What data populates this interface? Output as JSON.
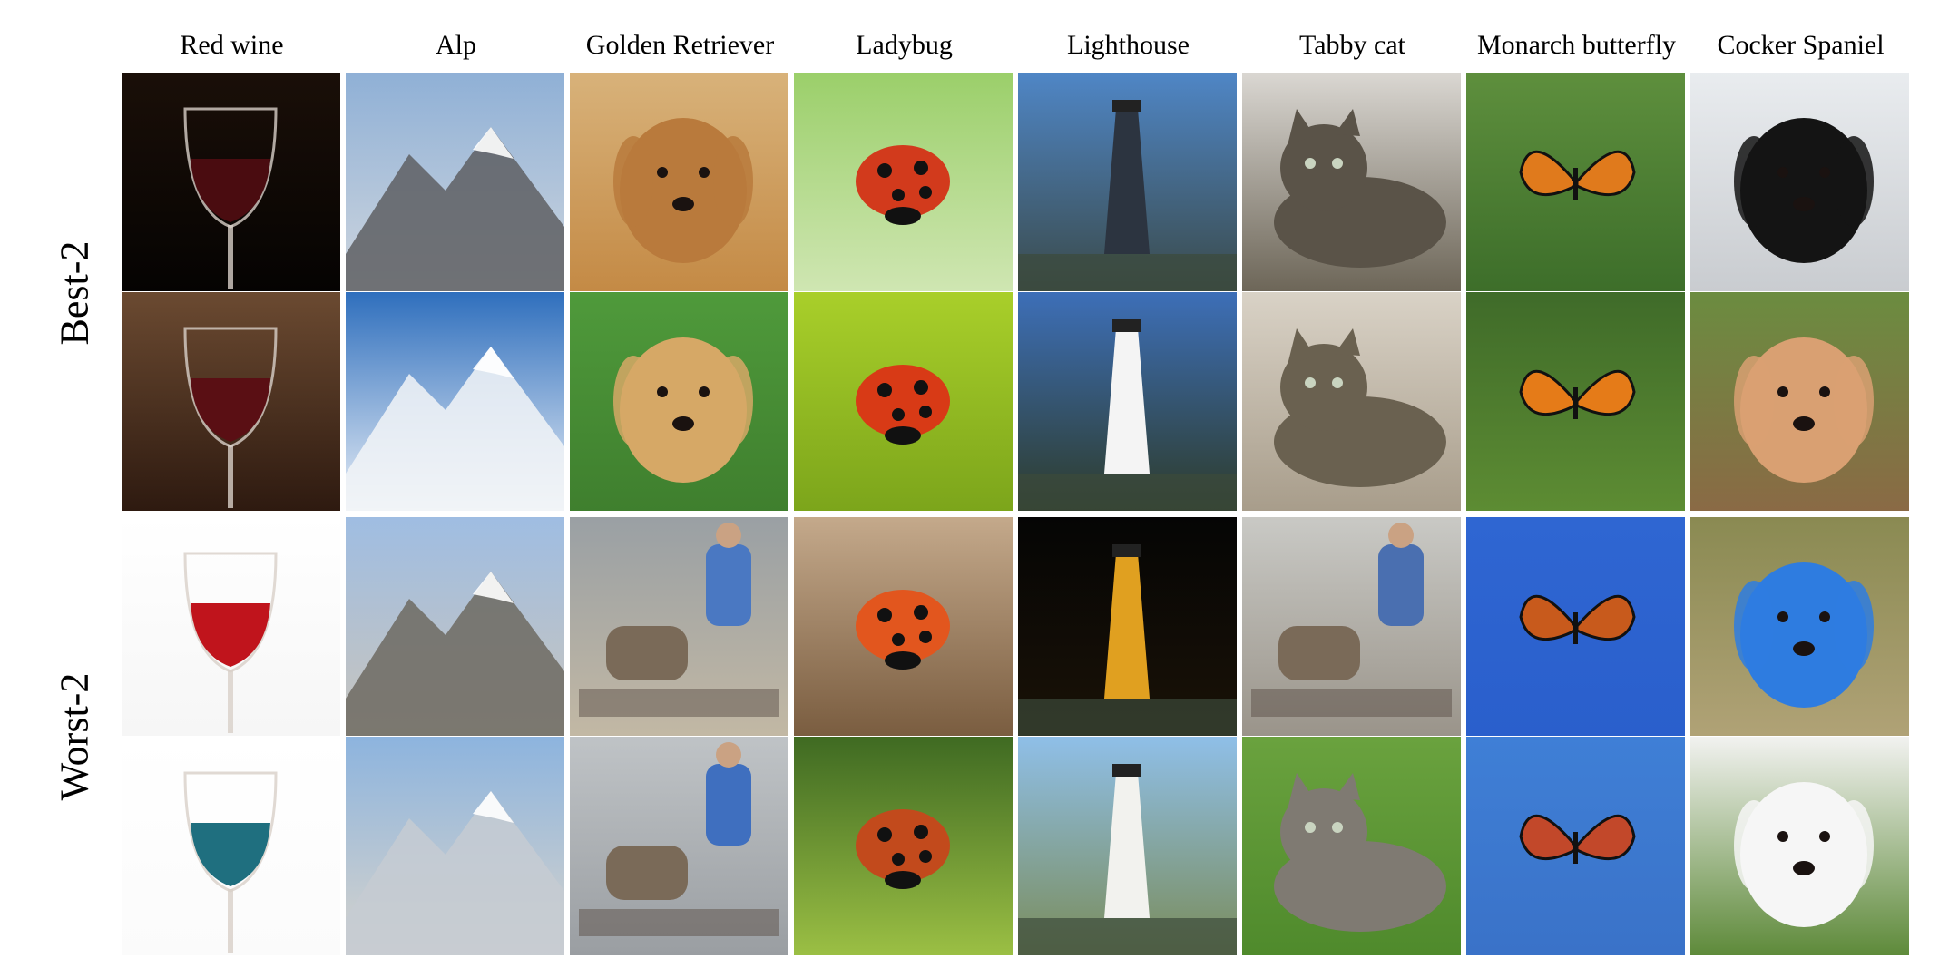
{
  "columns": [
    "Red wine",
    "Alp",
    "Golden Retriever",
    "Ladybug",
    "Lighthouse",
    "Tabby cat",
    "Monarch butterfly",
    "Cocker Spaniel"
  ],
  "row_groups": [
    "Best-2",
    "Worst-2"
  ],
  "grid": {
    "rows": [
      [
        {
          "subject": "wine-glass",
          "bg_top": "#1a0f08",
          "bg_bottom": "#050302",
          "accent": "#4a0c10"
        },
        {
          "subject": "mountain",
          "bg_top": "#8fb0d6",
          "bg_bottom": "#cfd6de",
          "accent": "#5e5f63"
        },
        {
          "subject": "dog",
          "bg_top": "#d8b27a",
          "bg_bottom": "#c48a45",
          "accent": "#b97a3c"
        },
        {
          "subject": "ladybug",
          "bg_top": "#9bcf6a",
          "bg_bottom": "#cfe6b2",
          "accent": "#d23a1c"
        },
        {
          "subject": "lighthouse",
          "bg_top": "#4f86c6",
          "bg_bottom": "#3a4a4a",
          "accent": "#2c3440"
        },
        {
          "subject": "cat",
          "bg_top": "#dad7d2",
          "bg_bottom": "#6d6658",
          "accent": "#5a5348"
        },
        {
          "subject": "butterfly",
          "bg_top": "#5e8f3d",
          "bg_bottom": "#3d6e2a",
          "accent": "#e07a1c"
        },
        {
          "subject": "dog",
          "bg_top": "#e9ecef",
          "bg_bottom": "#c9ccd0",
          "accent": "#141414"
        }
      ],
      [
        {
          "subject": "wine-glass",
          "bg_top": "#6b4a31",
          "bg_bottom": "#2e1a10",
          "accent": "#5a0f14"
        },
        {
          "subject": "mountain",
          "bg_top": "#2f6fbd",
          "bg_bottom": "#e8eef6",
          "accent": "#f2f4f7"
        },
        {
          "subject": "dog",
          "bg_top": "#4f9a3b",
          "bg_bottom": "#3f7f2e",
          "accent": "#d6a866"
        },
        {
          "subject": "ladybug",
          "bg_top": "#a9cf2a",
          "bg_bottom": "#7ca51b",
          "accent": "#d83a16"
        },
        {
          "subject": "lighthouse",
          "bg_top": "#3d6fb8",
          "bg_bottom": "#2d3b2a",
          "accent": "#f4f4f4"
        },
        {
          "subject": "cat",
          "bg_top": "#d9d2c6",
          "bg_bottom": "#a89d8b",
          "accent": "#6a6150"
        },
        {
          "subject": "butterfly",
          "bg_top": "#3f6b29",
          "bg_bottom": "#5d8c33",
          "accent": "#e57b18"
        },
        {
          "subject": "dog",
          "bg_top": "#6b8c40",
          "bg_bottom": "#8a6a45",
          "accent": "#d9a072"
        }
      ],
      [
        {
          "subject": "wine-glass",
          "bg_top": "#ffffff",
          "bg_bottom": "#f6f6f6",
          "accent": "#c0141c"
        },
        {
          "subject": "mountain",
          "bg_top": "#9fbde2",
          "bg_bottom": "#c9c5bd",
          "accent": "#6d6a62"
        },
        {
          "subject": "people",
          "bg_top": "#9aa0a4",
          "bg_bottom": "#c2b8a4",
          "accent": "#4a78c2"
        },
        {
          "subject": "ladybug",
          "bg_top": "#c4a98b",
          "bg_bottom": "#7a5d40",
          "accent": "#e2561e"
        },
        {
          "subject": "lighthouse",
          "bg_top": "#050505",
          "bg_bottom": "#1a1206",
          "accent": "#e0a020"
        },
        {
          "subject": "people",
          "bg_top": "#c9c9c5",
          "bg_bottom": "#9a948a",
          "accent": "#4a6fb0"
        },
        {
          "subject": "butterfly",
          "bg_top": "#2f66d2",
          "bg_bottom": "#2a5fcc",
          "accent": "#c85a1c"
        },
        {
          "subject": "dog",
          "bg_top": "#8a8a52",
          "bg_bottom": "#b0a276",
          "accent": "#2e7ce0"
        }
      ],
      [
        {
          "subject": "wine-glass",
          "bg_top": "#ffffff",
          "bg_bottom": "#fbfbfb",
          "accent": "#1f6f7f"
        },
        {
          "subject": "mountain",
          "bg_top": "#8db4de",
          "bg_bottom": "#d6d3cc",
          "accent": "#c5cbd2"
        },
        {
          "subject": "people",
          "bg_top": "#bfc3c6",
          "bg_bottom": "#9a9ea2",
          "accent": "#3f6fbf"
        },
        {
          "subject": "ladybug",
          "bg_top": "#3f6a22",
          "bg_bottom": "#9bbf44",
          "accent": "#c24a1c"
        },
        {
          "subject": "lighthouse",
          "bg_top": "#8fbfe8",
          "bg_bottom": "#7a8c5a",
          "accent": "#f2f2ee"
        },
        {
          "subject": "cat",
          "bg_top": "#6aa23e",
          "bg_bottom": "#4f8a2c",
          "accent": "#7f7a72"
        },
        {
          "subject": "butterfly",
          "bg_top": "#3f7fd6",
          "bg_bottom": "#3a72c8",
          "accent": "#c2482a"
        },
        {
          "subject": "dog",
          "bg_top": "#f2f2f0",
          "bg_bottom": "#5e8a3a",
          "accent": "#f6f6f6"
        }
      ]
    ]
  }
}
